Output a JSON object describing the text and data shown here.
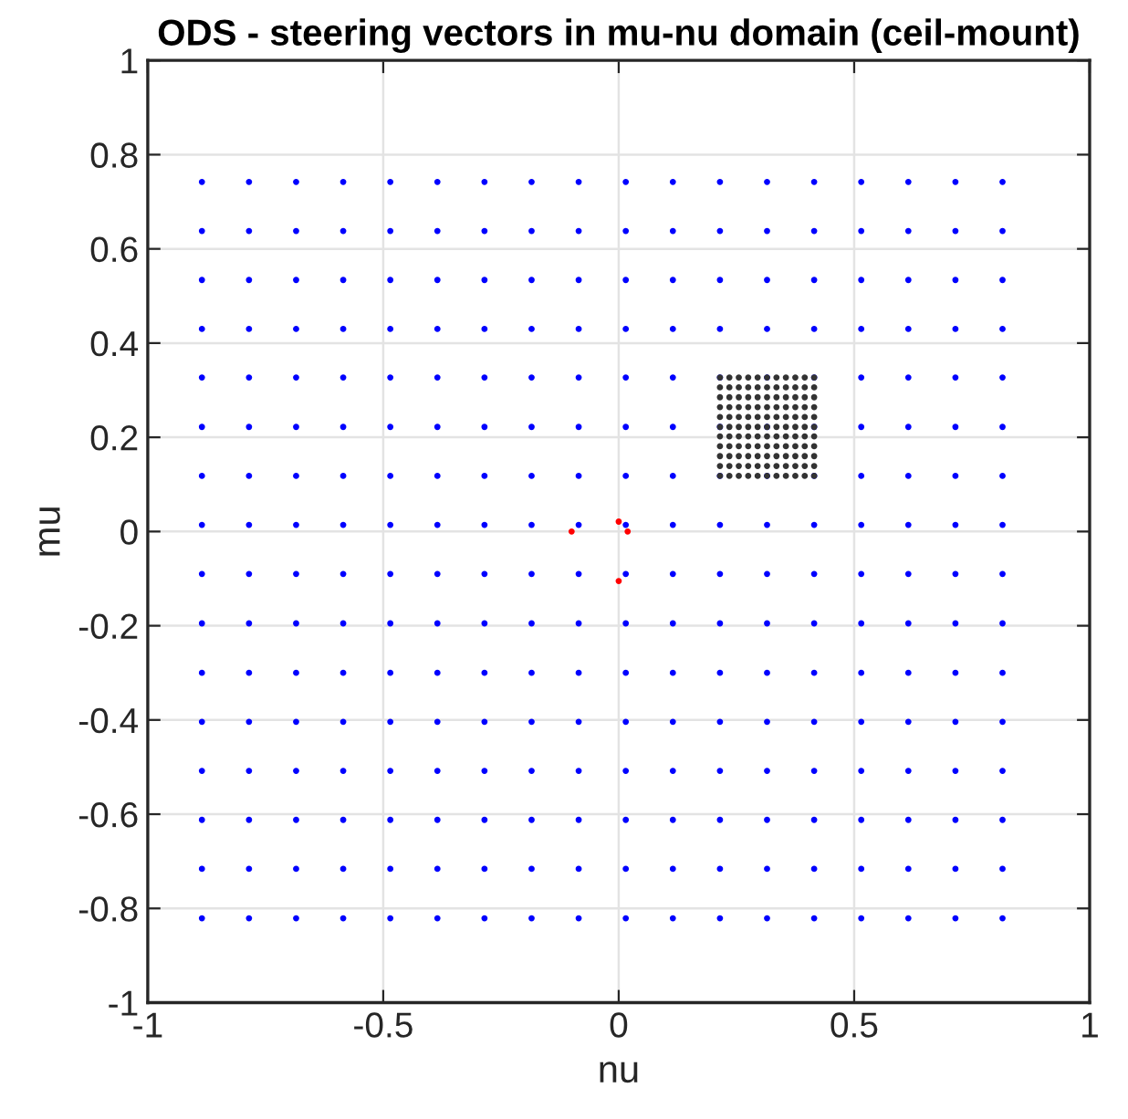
{
  "chart_data": {
    "type": "scatter",
    "title": "ODS - steering vectors in mu-nu domain (ceil-mount)",
    "xlabel": "nu",
    "ylabel": "mu",
    "xlim": [
      -1,
      1
    ],
    "ylim": [
      -1,
      1
    ],
    "xticks": [
      -1,
      -0.5,
      0,
      0.5,
      1
    ],
    "yticks": [
      -1,
      -0.8,
      -0.6,
      -0.4,
      -0.2,
      0,
      0.2,
      0.4,
      0.6,
      0.8,
      1
    ],
    "grid": true,
    "marker": "circle",
    "series": [
      {
        "color": "#0000ff",
        "x": [
          -0.885,
          -0.785,
          -0.685,
          -0.585,
          -0.485,
          -0.385,
          -0.285,
          -0.185,
          -0.085,
          0.015,
          0.115,
          0.215,
          0.315,
          0.415,
          0.515,
          0.615,
          0.715,
          0.815,
          -0.885,
          -0.785,
          -0.685,
          -0.585,
          -0.485,
          -0.385,
          -0.285,
          -0.185,
          -0.085,
          0.015,
          0.115,
          0.215,
          0.315,
          0.415,
          0.515,
          0.615,
          0.715,
          0.815,
          -0.885,
          -0.785,
          -0.685,
          -0.585,
          -0.485,
          -0.385,
          -0.285,
          -0.185,
          -0.085,
          0.015,
          0.115,
          0.215,
          0.315,
          0.415,
          0.515,
          0.615,
          0.715,
          0.815,
          -0.885,
          -0.785,
          -0.685,
          -0.585,
          -0.485,
          -0.385,
          -0.285,
          -0.185,
          -0.085,
          0.015,
          0.115,
          0.215,
          0.315,
          0.415,
          0.515,
          0.615,
          0.715,
          0.815,
          -0.885,
          -0.785,
          -0.685,
          -0.585,
          -0.485,
          -0.385,
          -0.285,
          -0.185,
          -0.085,
          0.015,
          0.115,
          0.215,
          0.315,
          0.415,
          0.515,
          0.615,
          0.715,
          0.815,
          -0.885,
          -0.785,
          -0.685,
          -0.585,
          -0.485,
          -0.385,
          -0.285,
          -0.185,
          -0.085,
          0.015,
          0.115,
          0.215,
          0.315,
          0.415,
          0.515,
          0.615,
          0.715,
          0.815,
          -0.885,
          -0.785,
          -0.685,
          -0.585,
          -0.485,
          -0.385,
          -0.285,
          -0.185,
          -0.085,
          0.015,
          0.115,
          0.215,
          0.315,
          0.415,
          0.515,
          0.615,
          0.715,
          0.815,
          -0.885,
          -0.785,
          -0.685,
          -0.585,
          -0.485,
          -0.385,
          -0.285,
          -0.185,
          -0.085,
          0.015,
          0.115,
          0.215,
          0.315,
          0.415,
          0.515,
          0.615,
          0.715,
          0.815,
          -0.885,
          -0.785,
          -0.685,
          -0.585,
          -0.485,
          -0.385,
          -0.285,
          -0.185,
          -0.085,
          0.015,
          0.115,
          0.215,
          0.315,
          0.415,
          0.515,
          0.615,
          0.715,
          0.815,
          -0.885,
          -0.785,
          -0.685,
          -0.585,
          -0.485,
          -0.385,
          -0.285,
          -0.185,
          -0.085,
          0.015,
          0.115,
          0.215,
          0.315,
          0.415,
          0.515,
          0.615,
          0.715,
          0.815,
          -0.885,
          -0.785,
          -0.685,
          -0.585,
          -0.485,
          -0.385,
          -0.285,
          -0.185,
          -0.085,
          0.015,
          0.115,
          0.215,
          0.315,
          0.415,
          0.515,
          0.615,
          0.715,
          0.815,
          -0.885,
          -0.785,
          -0.685,
          -0.585,
          -0.485,
          -0.385,
          -0.285,
          -0.185,
          -0.085,
          0.015,
          0.115,
          0.215,
          0.315,
          0.415,
          0.515,
          0.615,
          0.715,
          0.815,
          -0.885,
          -0.785,
          -0.685,
          -0.585,
          -0.485,
          -0.385,
          -0.285,
          -0.185,
          -0.085,
          0.015,
          0.115,
          0.215,
          0.315,
          0.415,
          0.515,
          0.615,
          0.715,
          0.815,
          -0.885,
          -0.785,
          -0.685,
          -0.585,
          -0.485,
          -0.385,
          -0.285,
          -0.185,
          -0.085,
          0.015,
          0.115,
          0.215,
          0.315,
          0.415,
          0.515,
          0.615,
          0.715,
          0.815,
          -0.885,
          -0.785,
          -0.685,
          -0.585,
          -0.485,
          -0.385,
          -0.285,
          -0.185,
          -0.085,
          0.015,
          0.115,
          0.215,
          0.315,
          0.415,
          0.515,
          0.615,
          0.715,
          0.815,
          -0.885,
          -0.785,
          -0.685,
          -0.585,
          -0.485,
          -0.385,
          -0.285,
          -0.185,
          -0.085,
          0.015,
          0.115,
          0.215,
          0.315,
          0.415,
          0.515,
          0.615,
          0.715,
          0.815
        ],
        "values": [
          0.742,
          0.742,
          0.742,
          0.742,
          0.742,
          0.742,
          0.742,
          0.742,
          0.742,
          0.742,
          0.742,
          0.742,
          0.742,
          0.742,
          0.742,
          0.742,
          0.742,
          0.742,
          0.638,
          0.638,
          0.638,
          0.638,
          0.638,
          0.638,
          0.638,
          0.638,
          0.638,
          0.638,
          0.638,
          0.638,
          0.638,
          0.638,
          0.638,
          0.638,
          0.638,
          0.638,
          0.534,
          0.534,
          0.534,
          0.534,
          0.534,
          0.534,
          0.534,
          0.534,
          0.534,
          0.534,
          0.534,
          0.534,
          0.534,
          0.534,
          0.534,
          0.534,
          0.534,
          0.534,
          0.43,
          0.43,
          0.43,
          0.43,
          0.43,
          0.43,
          0.43,
          0.43,
          0.43,
          0.43,
          0.43,
          0.43,
          0.43,
          0.43,
          0.43,
          0.43,
          0.43,
          0.43,
          0.327,
          0.327,
          0.327,
          0.327,
          0.327,
          0.327,
          0.327,
          0.327,
          0.327,
          0.327,
          0.327,
          0.327,
          0.327,
          0.327,
          0.327,
          0.327,
          0.327,
          0.327,
          0.222,
          0.222,
          0.222,
          0.222,
          0.222,
          0.222,
          0.222,
          0.222,
          0.222,
          0.222,
          0.222,
          0.222,
          0.222,
          0.222,
          0.222,
          0.222,
          0.222,
          0.222,
          0.118,
          0.118,
          0.118,
          0.118,
          0.118,
          0.118,
          0.118,
          0.118,
          0.118,
          0.118,
          0.118,
          0.118,
          0.118,
          0.118,
          0.118,
          0.118,
          0.118,
          0.118,
          0.014,
          0.014,
          0.014,
          0.014,
          0.014,
          0.014,
          0.014,
          0.014,
          0.014,
          0.014,
          0.014,
          0.014,
          0.014,
          0.014,
          0.014,
          0.014,
          0.014,
          0.014,
          -0.09,
          -0.09,
          -0.09,
          -0.09,
          -0.09,
          -0.09,
          -0.09,
          -0.09,
          -0.09,
          -0.09,
          -0.09,
          -0.09,
          -0.09,
          -0.09,
          -0.09,
          -0.09,
          -0.09,
          -0.09,
          -0.195,
          -0.195,
          -0.195,
          -0.195,
          -0.195,
          -0.195,
          -0.195,
          -0.195,
          -0.195,
          -0.195,
          -0.195,
          -0.195,
          -0.195,
          -0.195,
          -0.195,
          -0.195,
          -0.195,
          -0.195,
          -0.3,
          -0.3,
          -0.3,
          -0.3,
          -0.3,
          -0.3,
          -0.3,
          -0.3,
          -0.3,
          -0.3,
          -0.3,
          -0.3,
          -0.3,
          -0.3,
          -0.3,
          -0.3,
          -0.3,
          -0.3,
          -0.404,
          -0.404,
          -0.404,
          -0.404,
          -0.404,
          -0.404,
          -0.404,
          -0.404,
          -0.404,
          -0.404,
          -0.404,
          -0.404,
          -0.404,
          -0.404,
          -0.404,
          -0.404,
          -0.404,
          -0.404,
          -0.508,
          -0.508,
          -0.508,
          -0.508,
          -0.508,
          -0.508,
          -0.508,
          -0.508,
          -0.508,
          -0.508,
          -0.508,
          -0.508,
          -0.508,
          -0.508,
          -0.508,
          -0.508,
          -0.508,
          -0.508,
          -0.612,
          -0.612,
          -0.612,
          -0.612,
          -0.612,
          -0.612,
          -0.612,
          -0.612,
          -0.612,
          -0.612,
          -0.612,
          -0.612,
          -0.612,
          -0.612,
          -0.612,
          -0.612,
          -0.612,
          -0.612,
          -0.716,
          -0.716,
          -0.716,
          -0.716,
          -0.716,
          -0.716,
          -0.716,
          -0.716,
          -0.716,
          -0.716,
          -0.716,
          -0.716,
          -0.716,
          -0.716,
          -0.716,
          -0.716,
          -0.716,
          -0.716,
          -0.821,
          -0.821,
          -0.821,
          -0.821,
          -0.821,
          -0.821,
          -0.821,
          -0.821,
          -0.821,
          -0.821,
          -0.821,
          -0.821,
          -0.821,
          -0.821,
          -0.821,
          -0.821,
          -0.821,
          -0.821
        ]
      },
      {
        "color": "#333333",
        "x": [
          0.215,
          0.235,
          0.255,
          0.275,
          0.295,
          0.315,
          0.335,
          0.355,
          0.375,
          0.395,
          0.415,
          0.215,
          0.235,
          0.255,
          0.275,
          0.295,
          0.315,
          0.335,
          0.355,
          0.375,
          0.395,
          0.415,
          0.215,
          0.235,
          0.255,
          0.275,
          0.295,
          0.315,
          0.335,
          0.355,
          0.375,
          0.395,
          0.415,
          0.215,
          0.235,
          0.255,
          0.275,
          0.295,
          0.315,
          0.335,
          0.355,
          0.375,
          0.395,
          0.415,
          0.215,
          0.235,
          0.255,
          0.275,
          0.295,
          0.315,
          0.335,
          0.355,
          0.375,
          0.395,
          0.415,
          0.215,
          0.235,
          0.255,
          0.275,
          0.295,
          0.315,
          0.335,
          0.355,
          0.375,
          0.395,
          0.415,
          0.215,
          0.235,
          0.255,
          0.275,
          0.295,
          0.315,
          0.335,
          0.355,
          0.375,
          0.395,
          0.415,
          0.215,
          0.235,
          0.255,
          0.275,
          0.295,
          0.315,
          0.335,
          0.355,
          0.375,
          0.395,
          0.415,
          0.215,
          0.235,
          0.255,
          0.275,
          0.295,
          0.315,
          0.335,
          0.355,
          0.375,
          0.395,
          0.415,
          0.215,
          0.235,
          0.255,
          0.275,
          0.295,
          0.315,
          0.335,
          0.355,
          0.375,
          0.395,
          0.415,
          0.215,
          0.235,
          0.255,
          0.275,
          0.295,
          0.315,
          0.335,
          0.355,
          0.375,
          0.395,
          0.415
        ],
        "values": [
          0.327,
          0.327,
          0.327,
          0.327,
          0.327,
          0.327,
          0.327,
          0.327,
          0.327,
          0.327,
          0.327,
          0.306,
          0.306,
          0.306,
          0.306,
          0.306,
          0.306,
          0.306,
          0.306,
          0.306,
          0.306,
          0.306,
          0.285,
          0.285,
          0.285,
          0.285,
          0.285,
          0.285,
          0.285,
          0.285,
          0.285,
          0.285,
          0.285,
          0.264,
          0.264,
          0.264,
          0.264,
          0.264,
          0.264,
          0.264,
          0.264,
          0.264,
          0.264,
          0.264,
          0.243,
          0.243,
          0.243,
          0.243,
          0.243,
          0.243,
          0.243,
          0.243,
          0.243,
          0.243,
          0.243,
          0.222,
          0.222,
          0.222,
          0.222,
          0.222,
          0.222,
          0.222,
          0.222,
          0.222,
          0.222,
          0.222,
          0.202,
          0.202,
          0.202,
          0.202,
          0.202,
          0.202,
          0.202,
          0.202,
          0.202,
          0.202,
          0.202,
          0.181,
          0.181,
          0.181,
          0.181,
          0.181,
          0.181,
          0.181,
          0.181,
          0.181,
          0.181,
          0.181,
          0.16,
          0.16,
          0.16,
          0.16,
          0.16,
          0.16,
          0.16,
          0.16,
          0.16,
          0.16,
          0.16,
          0.139,
          0.139,
          0.139,
          0.139,
          0.139,
          0.139,
          0.139,
          0.139,
          0.139,
          0.139,
          0.139,
          0.118,
          0.118,
          0.118,
          0.118,
          0.118,
          0.118,
          0.118,
          0.118,
          0.118,
          0.118,
          0.118
        ]
      },
      {
        "color": "#ff0000",
        "x": [
          -0.1,
          0,
          0.019,
          0
        ],
        "values": [
          0,
          0.021,
          0,
          -0.105
        ]
      }
    ]
  }
}
